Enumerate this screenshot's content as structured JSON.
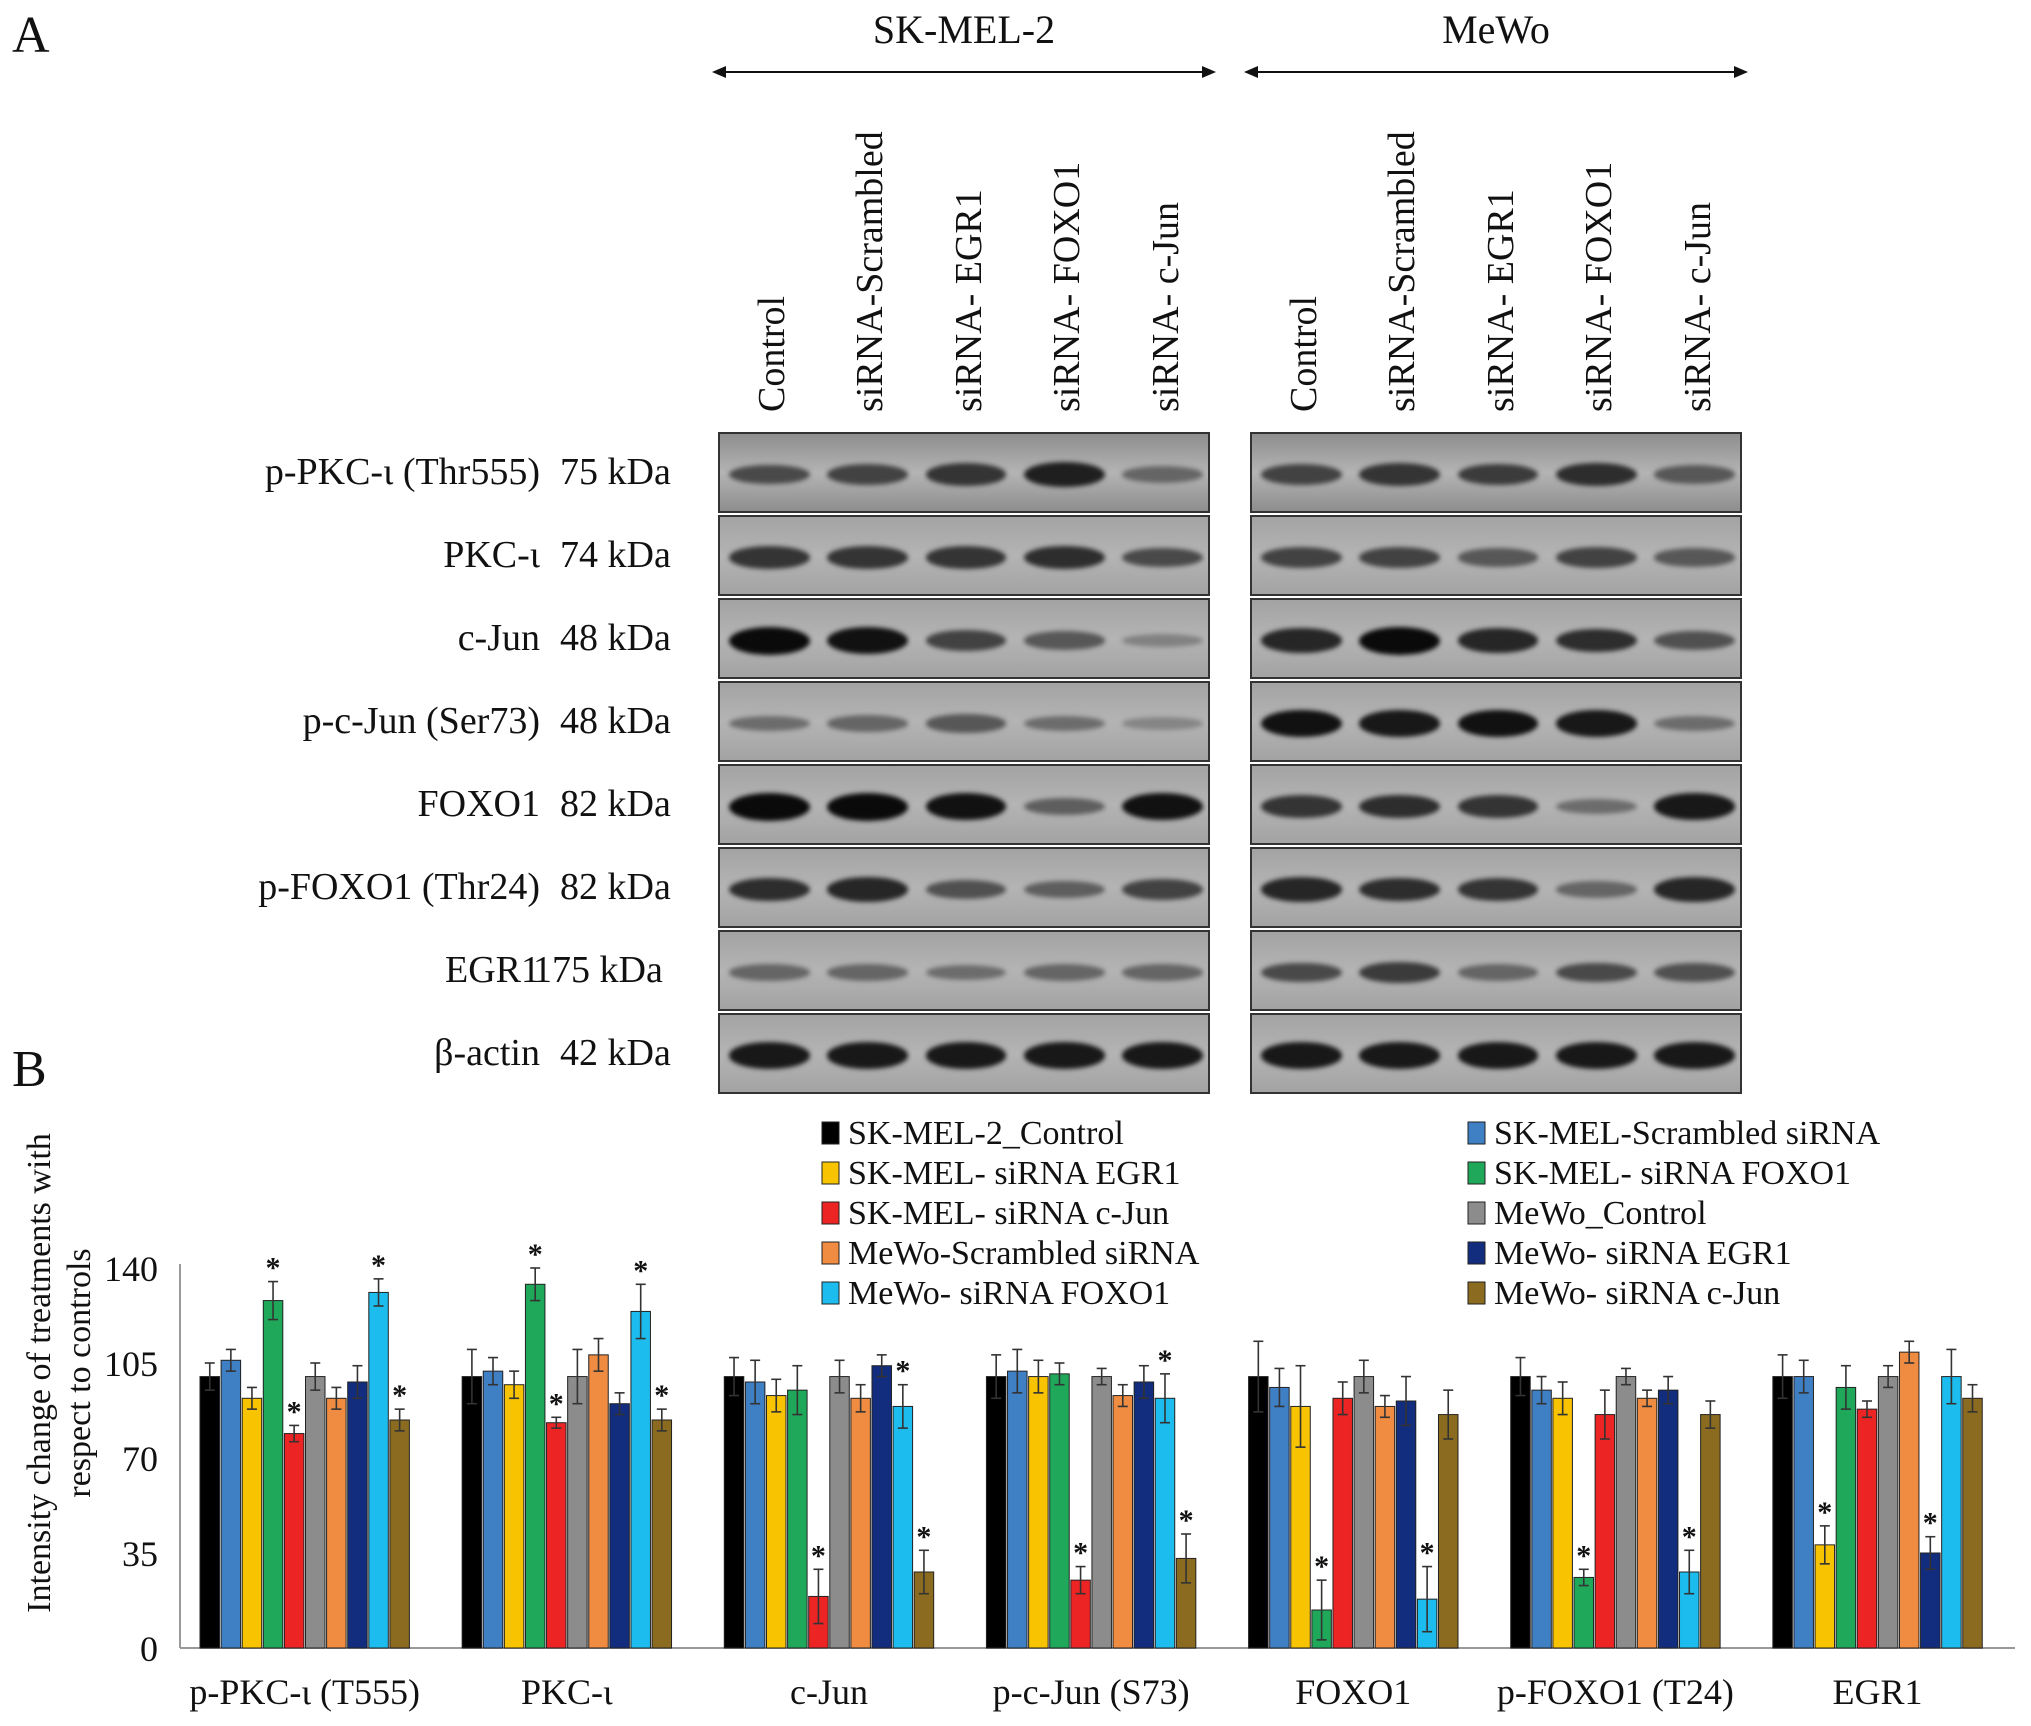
{
  "panel_a": {
    "label": "A",
    "groups": [
      {
        "name": "SK-MEL-2",
        "lanes": [
          "Control",
          "siRNA-Scrambled",
          "siRNA- EGR1",
          "siRNA- FOXO1",
          "siRNA- c-Jun"
        ]
      },
      {
        "name": "MeWo",
        "lanes": [
          "Control",
          "siRNA-Scrambled",
          "siRNA- EGR1",
          "siRNA- FOXO1",
          "siRNA- c-Jun"
        ]
      }
    ],
    "blots": [
      {
        "name": "p-PKC-ι (Thr555)",
        "kda": "75 kDa"
      },
      {
        "name": "PKC-ι",
        "kda": "74 kDa"
      },
      {
        "name": "c-Jun",
        "kda": "48 kDa"
      },
      {
        "name": "p-c-Jun (Ser73)",
        "kda": "48 kDa"
      },
      {
        "name": "FOXO1",
        "kda": "82 kDa"
      },
      {
        "name": "p-FOXO1 (Thr24)",
        "kda": "82 kDa"
      },
      {
        "name": "EGR1",
        "kda": "175 kDa"
      },
      {
        "name": "β-actin",
        "kda": "42 kDa"
      }
    ],
    "band_intensity": [
      [
        [
          0.55,
          0.6,
          0.7,
          0.85,
          0.35
        ],
        [
          0.6,
          0.7,
          0.65,
          0.75,
          0.45
        ]
      ],
      [
        [
          0.7,
          0.7,
          0.7,
          0.75,
          0.55
        ],
        [
          0.6,
          0.6,
          0.45,
          0.6,
          0.45
        ]
      ],
      [
        [
          1.0,
          0.95,
          0.6,
          0.45,
          0.15
        ],
        [
          0.8,
          1.0,
          0.8,
          0.75,
          0.5
        ]
      ],
      [
        [
          0.3,
          0.35,
          0.45,
          0.3,
          0.12
        ],
        [
          0.95,
          0.9,
          0.95,
          0.9,
          0.3
        ]
      ],
      [
        [
          1.0,
          1.0,
          0.95,
          0.4,
          0.95
        ],
        [
          0.7,
          0.75,
          0.7,
          0.3,
          0.9
        ]
      ],
      [
        [
          0.75,
          0.8,
          0.5,
          0.4,
          0.6
        ],
        [
          0.8,
          0.75,
          0.7,
          0.35,
          0.8
        ]
      ],
      [
        [
          0.35,
          0.35,
          0.3,
          0.35,
          0.35
        ],
        [
          0.55,
          0.65,
          0.35,
          0.55,
          0.5
        ]
      ],
      [
        [
          0.9,
          0.9,
          0.9,
          0.9,
          0.9
        ],
        [
          0.9,
          0.9,
          0.9,
          0.9,
          0.9
        ]
      ]
    ]
  },
  "panel_b": {
    "label": "B"
  },
  "chart_data": {
    "type": "bar",
    "title": "",
    "xlabel": "",
    "ylabel": "Intensity change of treatments with respect to controls",
    "ylim": [
      0,
      140
    ],
    "yticks": [
      0,
      35,
      70,
      105,
      140
    ],
    "grid": false,
    "legend_position": "top-right",
    "categories": [
      "p-PKC-ι (T555)",
      "PKC-ι",
      "c-Jun",
      "p-c-Jun (S73)",
      "FOXO1",
      "p-FOXO1 (T24)",
      "EGR1"
    ],
    "series": [
      {
        "name": "SK-MEL-2_Control",
        "color": "#000000",
        "values": [
          100,
          100,
          100,
          100,
          100,
          100,
          100
        ],
        "errors": [
          5,
          10,
          7,
          8,
          13,
          7,
          8
        ],
        "significant": [
          false,
          false,
          false,
          false,
          false,
          false,
          false
        ]
      },
      {
        "name": "SK-MEL-Scrambled siRNA",
        "color": "#3f7fc4",
        "values": [
          106,
          102,
          98,
          102,
          96,
          95,
          100
        ],
        "errors": [
          4,
          5,
          8,
          8,
          7,
          5,
          6
        ],
        "significant": [
          false,
          false,
          false,
          false,
          false,
          false,
          false
        ]
      },
      {
        "name": "SK-MEL- siRNA EGR1",
        "color": "#f8c300",
        "values": [
          92,
          97,
          93,
          100,
          89,
          92,
          38
        ],
        "errors": [
          4,
          5,
          6,
          6,
          15,
          6,
          7
        ],
        "significant": [
          false,
          false,
          false,
          false,
          false,
          false,
          true
        ]
      },
      {
        "name": "SK-MEL- siRNA FOXO1",
        "color": "#1fa85a",
        "values": [
          128,
          134,
          95,
          101,
          14,
          26,
          96
        ],
        "errors": [
          7,
          6,
          9,
          4,
          11,
          3,
          8
        ],
        "significant": [
          true,
          true,
          false,
          false,
          true,
          true,
          false
        ]
      },
      {
        "name": "SK-MEL- siRNA c-Jun",
        "color": "#ed2424",
        "values": [
          79,
          83,
          19,
          25,
          92,
          86,
          88
        ],
        "errors": [
          3,
          2,
          10,
          5,
          6,
          9,
          3
        ],
        "significant": [
          true,
          true,
          true,
          true,
          false,
          false,
          false
        ]
      },
      {
        "name": "MeWo_Control",
        "color": "#8c8c8c",
        "values": [
          100,
          100,
          100,
          100,
          100,
          100,
          100
        ],
        "errors": [
          5,
          10,
          6,
          3,
          6,
          3,
          4
        ],
        "significant": [
          false,
          false,
          false,
          false,
          false,
          false,
          false
        ]
      },
      {
        "name": "MeWo-Scrambled siRNA",
        "color": "#ef8c42",
        "values": [
          92,
          108,
          92,
          93,
          89,
          92,
          109
        ],
        "errors": [
          4,
          6,
          5,
          4,
          4,
          3,
          4
        ],
        "significant": [
          false,
          false,
          false,
          false,
          false,
          false,
          false
        ]
      },
      {
        "name": "MeWo- siRNA EGR1",
        "color": "#122c7e",
        "values": [
          98,
          90,
          104,
          98,
          91,
          95,
          35
        ],
        "errors": [
          6,
          4,
          4,
          6,
          9,
          5,
          6
        ],
        "significant": [
          false,
          false,
          false,
          false,
          false,
          false,
          true
        ]
      },
      {
        "name": "MeWo- siRNA FOXO1",
        "color": "#1cbdee",
        "values": [
          131,
          124,
          89,
          92,
          18,
          28,
          100
        ],
        "errors": [
          5,
          10,
          8,
          9,
          12,
          8,
          10
        ],
        "significant": [
          true,
          true,
          true,
          true,
          true,
          true,
          false
        ]
      },
      {
        "name": "MeWo- siRNA c-Jun",
        "color": "#8b6b1f",
        "values": [
          84,
          84,
          28,
          33,
          86,
          86,
          92
        ],
        "errors": [
          4,
          4,
          8,
          9,
          9,
          5,
          5
        ],
        "significant": [
          true,
          true,
          true,
          true,
          false,
          false,
          false
        ]
      }
    ],
    "significance_marker": "*"
  }
}
